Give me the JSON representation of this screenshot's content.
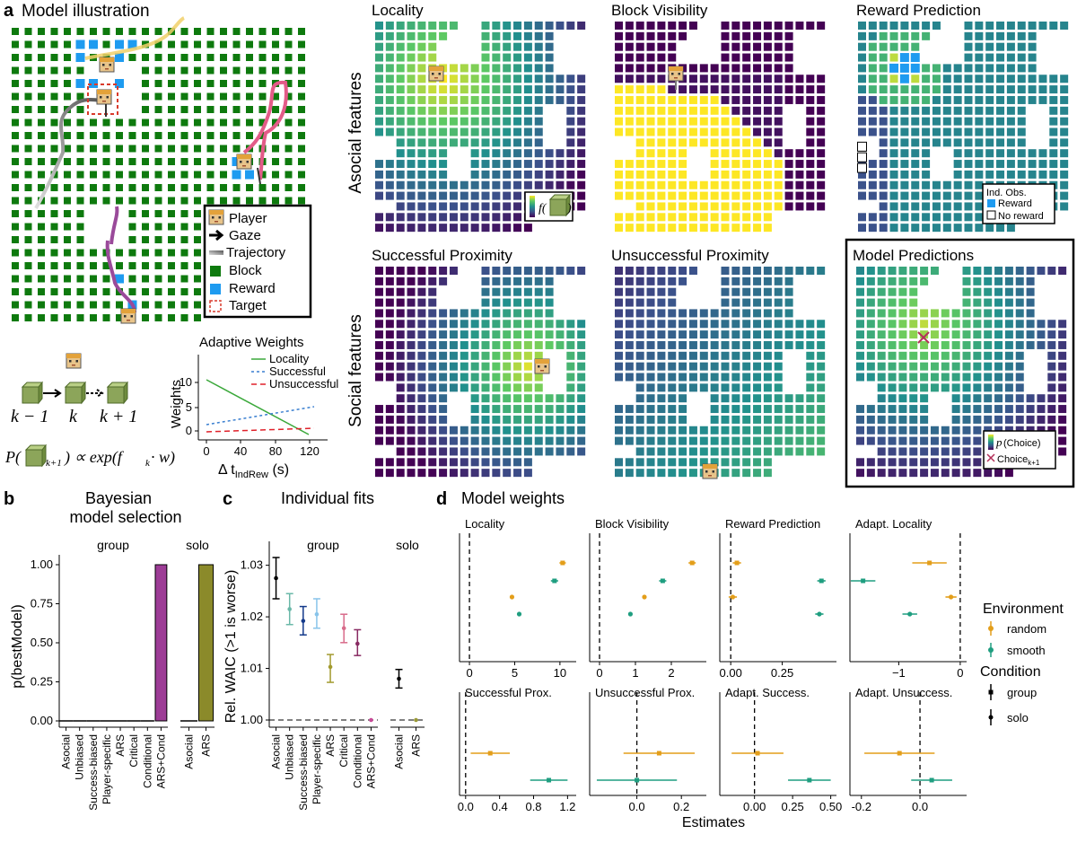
{
  "panel_a": {
    "letter": "a",
    "title": "Model illustration",
    "legend": {
      "player": "Player",
      "gaze": "Gaze",
      "trajectory": "Trajectory",
      "block": "Block",
      "reward": "Reward",
      "target": "Target"
    },
    "eq_labels": {
      "km1": "k − 1",
      "k": "k",
      "kp1": "k + 1"
    },
    "equation_left": "P(",
    "equation_sub": "k+1",
    "equation_right": ") ∝ exp(f",
    "equation_tail": " · w)",
    "equation_k": "k",
    "colors": {
      "block": "#0e7a0e",
      "reward": "#1e9bf0",
      "target": "#d93a2b",
      "panel_border": "#000000"
    }
  },
  "adaptive_weights": {
    "title": "Adaptive Weights",
    "ylabel": "Weights",
    "xlabel_prefix": "Δ t",
    "xlabel_sub": "IndRew",
    "xlabel_suffix": " (s)",
    "legend": [
      "Locality",
      "Successful",
      "Unsuccessful"
    ],
    "xticks": [
      "0",
      "40",
      "80",
      "120"
    ],
    "yticks": [
      "0",
      "5",
      "10"
    ],
    "colors": [
      "#3aa83a",
      "#3a7fd0",
      "#e0212a"
    ]
  },
  "heatmaps": {
    "titles": [
      "Locality",
      "Block Visibility",
      "Reward Prediction",
      "Successful Proximity",
      "Unsuccessful Proximity",
      "Model Predictions"
    ],
    "row_labels": [
      "Asocial features",
      "Social features"
    ],
    "locality_legend": "f(",
    "reward_legend": {
      "title": "Ind. Obs.",
      "reward": "Reward",
      "no_reward": "No reward"
    },
    "model_legend": {
      "p": "p",
      "choice": "(Choice)",
      "choice_k": "Choice",
      "sub": "k+1"
    }
  },
  "panel_b": {
    "letter": "b",
    "title_line1": "Bayesian",
    "title_line2": "model selection",
    "ylabel": "p(bestModel)",
    "facets": [
      "group",
      "solo"
    ],
    "yticks": [
      "0.00",
      "0.25",
      "0.50",
      "0.75",
      "1.00"
    ],
    "chart_data": {
      "type": "bar",
      "facets": [
        {
          "name": "group",
          "categories": [
            "Asocial",
            "Unbiased",
            "Success-biased",
            "Player-specific",
            "ARS",
            "Critical",
            "Conditional",
            "ARS+Cond"
          ],
          "values": [
            0,
            0,
            0,
            0,
            0,
            0,
            0,
            1.0
          ]
        },
        {
          "name": "solo",
          "categories": [
            "Asocial",
            "ARS"
          ],
          "values": [
            0,
            1.0
          ]
        }
      ],
      "ylim": [
        0,
        1.0
      ],
      "colors": {
        "group": "#9d3c96",
        "solo": "#8b8a2a"
      }
    }
  },
  "panel_c": {
    "letter": "c",
    "title": "Individual fits",
    "ylabel": "Rel. WAIC (>1 is worse)",
    "facets": [
      "group",
      "solo"
    ],
    "yticks": [
      "1.00",
      "1.01",
      "1.02",
      "1.03"
    ],
    "chart_data": {
      "type": "scatter",
      "facets": [
        {
          "name": "group",
          "categories": [
            "Asocial",
            "Unbiased",
            "Success-biased",
            "Player-specific",
            "ARS",
            "Critical",
            "Conditional",
            "ARS+Cond"
          ],
          "mean": [
            1.0275,
            1.0215,
            1.0192,
            1.0205,
            1.0103,
            1.0178,
            1.0148,
            1.0
          ],
          "lower": [
            1.0235,
            1.0185,
            1.0165,
            1.0178,
            1.0073,
            1.015,
            1.0125,
            1.0
          ],
          "upper": [
            1.0315,
            1.0245,
            1.022,
            1.0235,
            1.0127,
            1.0205,
            1.0175,
            1.0
          ],
          "colors": [
            "#000000",
            "#6ab8a8",
            "#13398a",
            "#88c4ea",
            "#a29a2e",
            "#d86b8a",
            "#882a62",
            "#c84a98"
          ]
        },
        {
          "name": "solo",
          "categories": [
            "Asocial",
            "ARS"
          ],
          "mean": [
            1.008,
            1.0
          ],
          "lower": [
            1.0062,
            1.0
          ],
          "upper": [
            1.0098,
            1.0
          ],
          "colors": [
            "#000000",
            "#9a9a38"
          ]
        }
      ],
      "ylim": [
        0.998,
        1.0335
      ],
      "reference": 1.0
    }
  },
  "panel_d": {
    "letter": "d",
    "title": "Model weights",
    "xlabel": "Estimates",
    "legend": {
      "env_title": "Environment",
      "env": [
        "random",
        "smooth"
      ],
      "cond_title": "Condition",
      "cond": [
        "group",
        "solo"
      ],
      "colors": [
        "#e39e1a",
        "#1f9e80"
      ]
    },
    "chart_data": {
      "type": "scatter",
      "facets": [
        {
          "name": "Locality",
          "xlim": [
            -0.8,
            11.5
          ],
          "xticks": [
            0,
            5,
            10
          ],
          "ticklabels": [
            "0",
            "5",
            "10"
          ],
          "points": [
            {
              "env": "random",
              "cond": "group",
              "est": 10.3,
              "lo": 9.95,
              "hi": 10.65
            },
            {
              "env": "smooth",
              "cond": "group",
              "est": 9.4,
              "lo": 9.0,
              "hi": 9.8
            },
            {
              "env": "random",
              "cond": "solo",
              "est": 4.7,
              "lo": 4.7,
              "hi": 4.7
            },
            {
              "env": "smooth",
              "cond": "solo",
              "est": 5.5,
              "lo": 5.5,
              "hi": 5.5
            }
          ]
        },
        {
          "name": "Block Visibility",
          "xlim": [
            -0.2,
            2.9
          ],
          "xticks": [
            0,
            1,
            2
          ],
          "ticklabels": [
            "0",
            "1",
            "2"
          ],
          "points": [
            {
              "env": "random",
              "cond": "group",
              "est": 2.58,
              "lo": 2.48,
              "hi": 2.68
            },
            {
              "env": "smooth",
              "cond": "group",
              "est": 1.76,
              "lo": 1.66,
              "hi": 1.86
            },
            {
              "env": "random",
              "cond": "solo",
              "est": 1.25,
              "lo": 1.2,
              "hi": 1.3
            },
            {
              "env": "smooth",
              "cond": "solo",
              "est": 0.86,
              "lo": 0.86,
              "hi": 0.86
            }
          ]
        },
        {
          "name": "Reward Prediction",
          "xlim": [
            -0.04,
            0.5
          ],
          "xticks": [
            0,
            0.25
          ],
          "ticklabels": [
            "0.00",
            "0.25"
          ],
          "points": [
            {
              "env": "random",
              "cond": "group",
              "est": 0.03,
              "lo": 0.01,
              "hi": 0.05
            },
            {
              "env": "smooth",
              "cond": "group",
              "est": 0.44,
              "lo": 0.42,
              "hi": 0.46
            },
            {
              "env": "random",
              "cond": "solo",
              "est": 0.01,
              "lo": -0.01,
              "hi": 0.03
            },
            {
              "env": "smooth",
              "cond": "solo",
              "est": 0.43,
              "lo": 0.41,
              "hi": 0.45
            }
          ]
        },
        {
          "name": "Adapt. Locality",
          "xlim": [
            -1.75,
            0.06
          ],
          "xticks": [
            -1,
            0
          ],
          "ticklabels": [
            "−1",
            "0"
          ],
          "points": [
            {
              "env": "random",
              "cond": "group",
              "est": -0.5,
              "lo": -0.78,
              "hi": -0.22
            },
            {
              "env": "smooth",
              "cond": "group",
              "est": -1.58,
              "lo": -1.78,
              "hi": -1.38
            },
            {
              "env": "random",
              "cond": "solo",
              "est": -0.15,
              "lo": -0.24,
              "hi": -0.06
            },
            {
              "env": "smooth",
              "cond": "solo",
              "est": -0.82,
              "lo": -0.94,
              "hi": -0.7
            }
          ]
        },
        {
          "name": "Successful Prox.",
          "xlim": [
            -0.04,
            1.27
          ],
          "xticks": [
            0,
            0.4,
            0.8,
            1.2
          ],
          "ticklabels": [
            "0.0",
            "0.4",
            "0.8",
            "1.2"
          ],
          "points": [
            {
              "env": "random",
              "cond": "group",
              "est": 0.29,
              "lo": 0.06,
              "hi": 0.52
            },
            {
              "env": "smooth",
              "cond": "group",
              "est": 0.98,
              "lo": 0.76,
              "hi": 1.2
            }
          ]
        },
        {
          "name": "Unsuccessful Prox.",
          "xlim": [
            -0.2,
            0.3
          ],
          "xticks": [
            0,
            0.2
          ],
          "ticklabels": [
            "0.0",
            "0.2"
          ],
          "points": [
            {
              "env": "random",
              "cond": "group",
              "est": 0.1,
              "lo": -0.06,
              "hi": 0.26
            },
            {
              "env": "smooth",
              "cond": "group",
              "est": 0.0,
              "lo": -0.18,
              "hi": 0.18
            }
          ]
        },
        {
          "name": "Adapt. Success.",
          "xlim": [
            -0.21,
            0.52
          ],
          "xticks": [
            0,
            0.25,
            0.5
          ],
          "ticklabels": [
            "0.00",
            "0.25",
            "0.50"
          ],
          "points": [
            {
              "env": "random",
              "cond": "group",
              "est": 0.02,
              "lo": -0.15,
              "hi": 0.19
            },
            {
              "env": "smooth",
              "cond": "group",
              "est": 0.36,
              "lo": 0.22,
              "hi": 0.5
            }
          ]
        },
        {
          "name": "Adapt. Unsuccess.",
          "xlim": [
            -0.23,
            0.15
          ],
          "xticks": [
            -0.2,
            0
          ],
          "ticklabels": [
            "-0.2",
            "0.0"
          ],
          "points": [
            {
              "env": "random",
              "cond": "group",
              "est": -0.07,
              "lo": -0.19,
              "hi": 0.05
            },
            {
              "env": "smooth",
              "cond": "group",
              "est": 0.04,
              "lo": -0.03,
              "hi": 0.11
            }
          ]
        }
      ]
    }
  }
}
